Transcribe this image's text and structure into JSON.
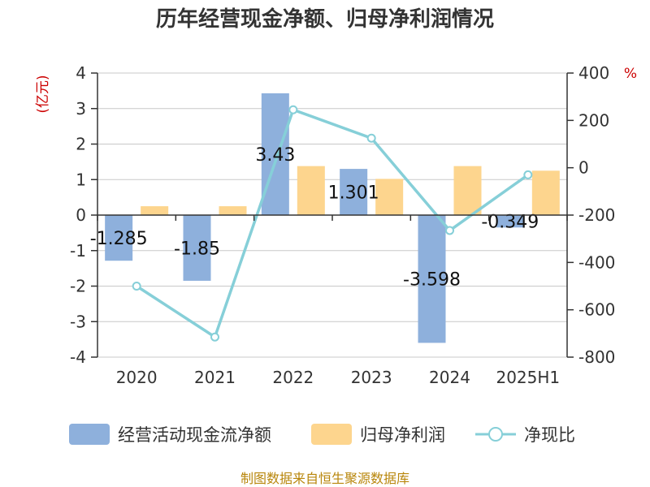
{
  "title": "历年经营现金净额、归母净利润情况",
  "source": "制图数据来自恒生聚源数据库",
  "chart_data": {
    "type": "bar",
    "categories": [
      "2020",
      "2021",
      "2022",
      "2023",
      "2024",
      "2025H1"
    ],
    "y_left": {
      "label": "(亿元)",
      "ylim": [
        -4,
        4
      ],
      "ticks": [
        -4,
        -3,
        -2,
        -1,
        0,
        1,
        2,
        3,
        4
      ]
    },
    "y_right": {
      "label": "%",
      "ylim": [
        -800,
        400
      ],
      "ticks": [
        -800,
        -600,
        -400,
        -200,
        0,
        200,
        400
      ]
    },
    "grid": true,
    "legend_position": "bottom",
    "series": [
      {
        "name": "经营活动现金流净额",
        "type": "bar",
        "axis": "left",
        "color": "#8eb0dc",
        "values": [
          -1.285,
          -1.85,
          3.43,
          1.301,
          -3.598,
          -0.349
        ],
        "labels": [
          "-1.285",
          "-1.85",
          "3.43",
          "1.301",
          "-3.598",
          "-0.349"
        ]
      },
      {
        "name": "归母净利润",
        "type": "bar",
        "axis": "left",
        "color": "#fdd58e",
        "values": [
          0.25,
          0.25,
          1.38,
          1.02,
          1.38,
          1.25
        ]
      },
      {
        "name": "净现比",
        "type": "line",
        "axis": "right",
        "color": "#86cfd8",
        "values": [
          -500,
          -715,
          245,
          125,
          -265,
          -30
        ]
      }
    ]
  }
}
